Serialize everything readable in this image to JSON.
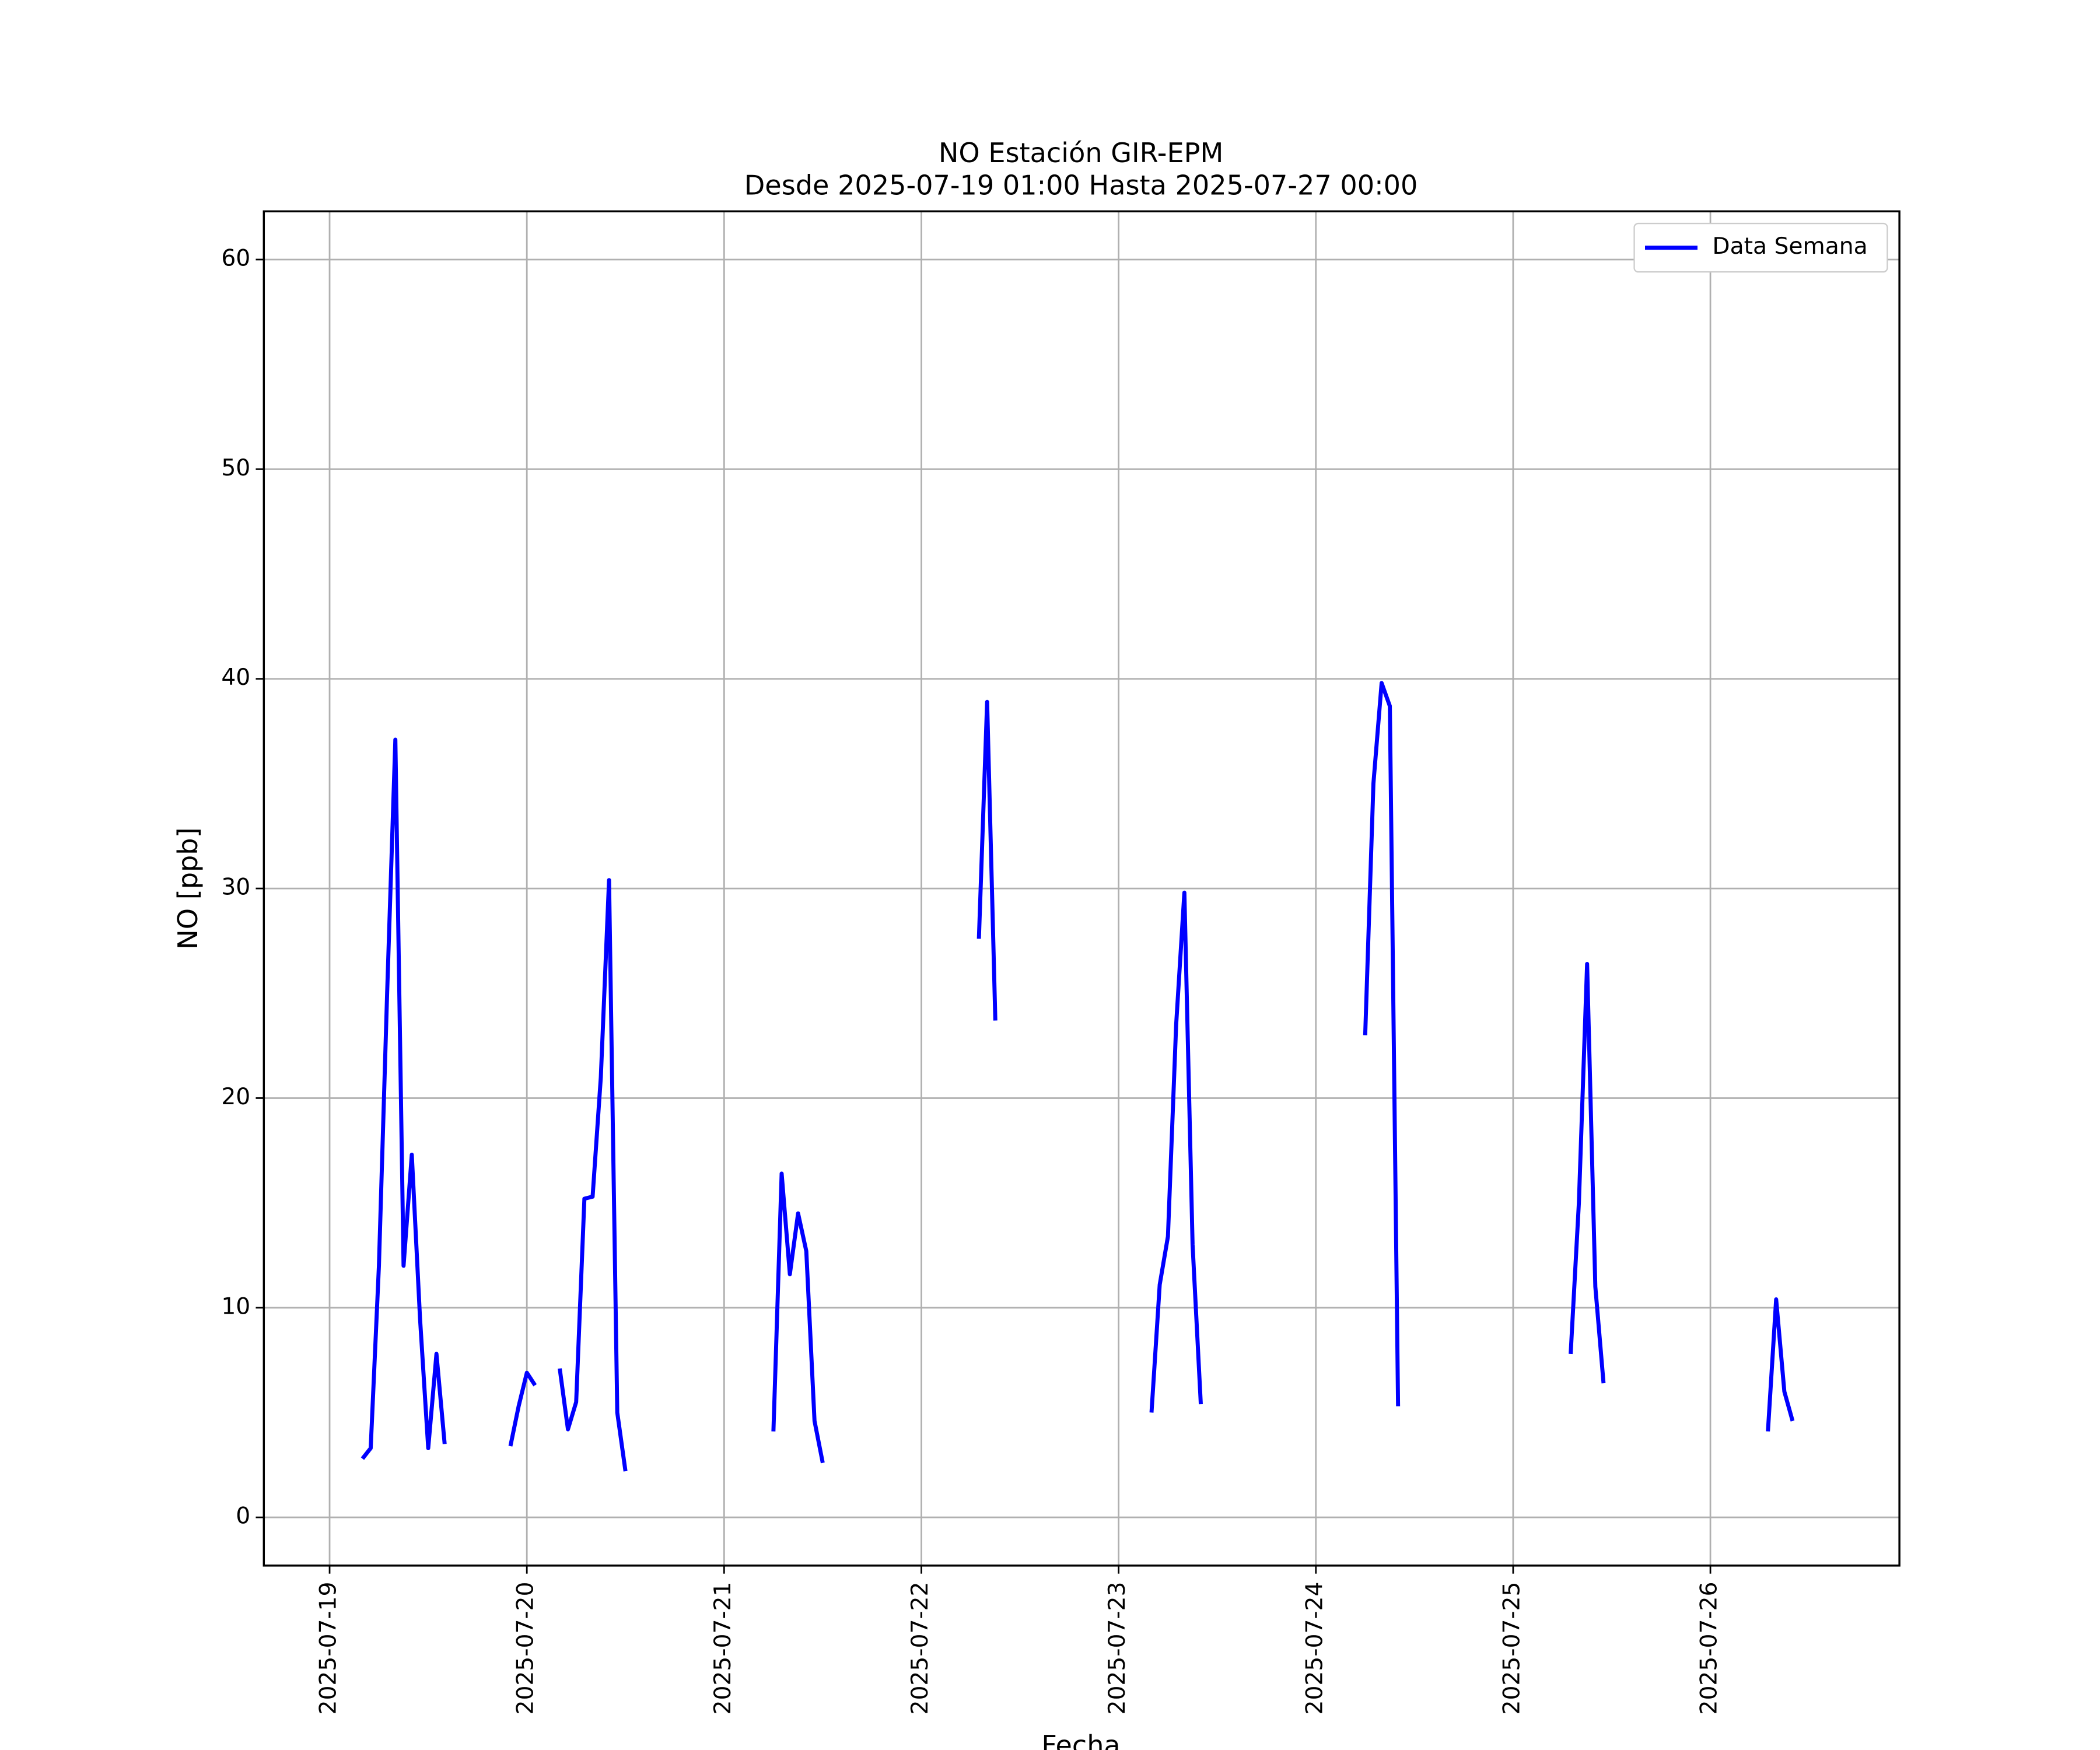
{
  "chart_data": {
    "type": "line",
    "title": "NO Estación GIR-EPM",
    "subtitle": "Desde 2025-07-19 01:00 Hasta 2025-07-27 00:00",
    "xlabel": "Fecha",
    "ylabel": "NO [ppb]",
    "x": [
      "2025-07-19 04:00",
      "2025-07-19 05:00",
      "2025-07-19 06:00",
      "2025-07-19 07:00",
      "2025-07-19 08:00",
      "2025-07-19 09:00",
      "2025-07-19 10:00",
      "2025-07-19 11:00",
      "2025-07-19 12:00",
      "2025-07-19 13:00",
      "2025-07-19 14:00",
      "2025-07-19 15:00",
      "2025-07-19 22:00",
      "2025-07-19 23:00",
      "2025-07-20 00:00",
      "2025-07-20 01:00",
      "2025-07-20 02:00",
      "2025-07-20 04:00",
      "2025-07-20 05:00",
      "2025-07-20 06:00",
      "2025-07-20 07:00",
      "2025-07-20 08:00",
      "2025-07-20 09:00",
      "2025-07-20 10:00",
      "2025-07-20 11:00",
      "2025-07-20 12:00",
      "2025-07-20 13:00",
      "2025-07-21 06:00",
      "2025-07-21 07:00",
      "2025-07-21 08:00",
      "2025-07-21 09:00",
      "2025-07-21 10:00",
      "2025-07-21 11:00",
      "2025-07-21 12:00",
      "2025-07-21 13:00",
      "2025-07-22 07:00",
      "2025-07-22 08:00",
      "2025-07-22 09:00",
      "2025-07-22 10:00",
      "2025-07-23 04:00",
      "2025-07-23 05:00",
      "2025-07-23 06:00",
      "2025-07-23 07:00",
      "2025-07-23 08:00",
      "2025-07-23 09:00",
      "2025-07-23 10:00",
      "2025-07-23 11:00",
      "2025-07-24 06:00",
      "2025-07-24 07:00",
      "2025-07-24 08:00",
      "2025-07-24 09:00",
      "2025-07-24 10:00",
      "2025-07-24 11:00",
      "2025-07-25 07:00",
      "2025-07-25 08:00",
      "2025-07-25 09:00",
      "2025-07-25 10:00",
      "2025-07-25 11:00",
      "2025-07-25 12:00",
      "2025-07-26 07:00",
      "2025-07-26 08:00",
      "2025-07-26 09:00",
      "2025-07-26 10:00"
    ],
    "series": [
      {
        "name": "Data Semana",
        "color": "#0000ff",
        "values": [
          2.8,
          3.3,
          12,
          25,
          37.1,
          12,
          17.3,
          9.5,
          3.3,
          7.8,
          3.5,
          null,
          3.4,
          5.3,
          6.9,
          6.3,
          null,
          7.1,
          4.2,
          5.5,
          15.2,
          15.3,
          21,
          30.4,
          5.0,
          2.2,
          null,
          4.1,
          16.4,
          11.6,
          14.5,
          12.7,
          4.6,
          2.6,
          null,
          27.6,
          38.9,
          23.7,
          null,
          5.0,
          11.1,
          13.4,
          23.5,
          29.8,
          13.0,
          5.4,
          null,
          23.0,
          35.0,
          39.8,
          38.7,
          5.3,
          null,
          7.8,
          15.0,
          26.4,
          11.0,
          6.4,
          null,
          4.1,
          10.4,
          6.0,
          4.6
        ]
      }
    ],
    "xlim": [
      "2025-07-18 16:00",
      "2025-07-26 23:00"
    ],
    "xticks": [
      {
        "value": "2025-07-19 00:00",
        "label": "2025-07-19"
      },
      {
        "value": "2025-07-20 00:00",
        "label": "2025-07-20"
      },
      {
        "value": "2025-07-21 00:00",
        "label": "2025-07-21"
      },
      {
        "value": "2025-07-22 00:00",
        "label": "2025-07-22"
      },
      {
        "value": "2025-07-23 00:00",
        "label": "2025-07-23"
      },
      {
        "value": "2025-07-24 00:00",
        "label": "2025-07-24"
      },
      {
        "value": "2025-07-25 00:00",
        "label": "2025-07-25"
      },
      {
        "value": "2025-07-26 00:00",
        "label": "2025-07-26"
      }
    ],
    "ylim": [
      -2.3,
      62.3
    ],
    "yticks": [
      0,
      10,
      20,
      30,
      40,
      50,
      60
    ],
    "grid": true,
    "legend": "upper right"
  }
}
